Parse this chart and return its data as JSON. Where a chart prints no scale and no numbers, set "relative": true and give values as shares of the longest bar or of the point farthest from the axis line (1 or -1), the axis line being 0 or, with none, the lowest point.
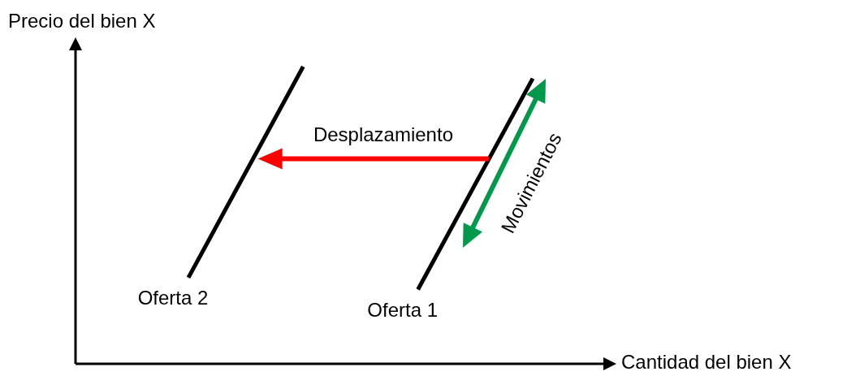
{
  "chart_data": {
    "type": "line",
    "relative": true,
    "xlabel": "Cantidad del bien X",
    "ylabel": "Precio del bien X",
    "categories": [
      null,
      null,
      null,
      null
    ],
    "series": [
      {
        "name": "Oferta 2",
        "color": "#000000",
        "values": [
          0.29,
          1,
          null,
          null
        ]
      },
      {
        "name": "Oferta 1",
        "color": "#000000",
        "values": [
          null,
          null,
          0.25,
          0.96
        ]
      }
    ],
    "annotations": [
      "Desplazamiento",
      "Movimientos"
    ],
    "marker": "none",
    "line_style": "solid",
    "grid": false,
    "legend": false
  }
}
